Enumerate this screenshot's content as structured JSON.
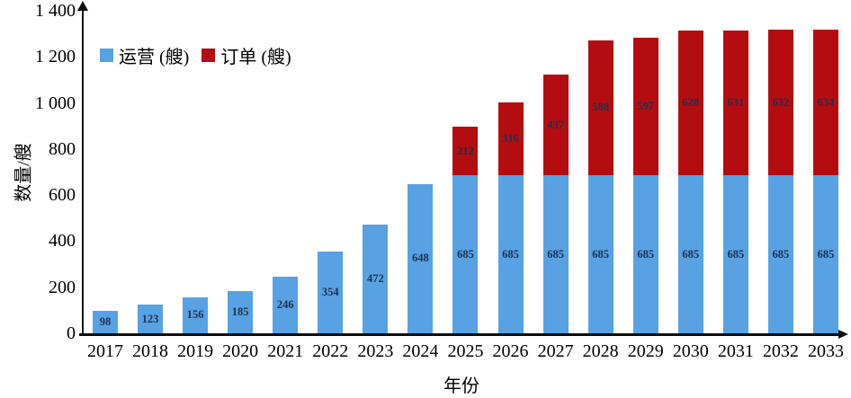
{
  "chart_data": {
    "type": "bar",
    "stacked": true,
    "title": "",
    "xlabel": "年份",
    "ylabel": "数量/艘",
    "categories": [
      "2017",
      "2018",
      "2019",
      "2020",
      "2021",
      "2022",
      "2023",
      "2024",
      "2025",
      "2026",
      "2027",
      "2028",
      "2029",
      "2030",
      "2031",
      "2032",
      "2033"
    ],
    "series": [
      {
        "key": "operating",
        "name": "运营 (艘)",
        "color": "#58a1e2",
        "values": [
          98,
          123,
          156,
          185,
          246,
          354,
          472,
          648,
          685,
          685,
          685,
          685,
          685,
          685,
          685,
          685,
          685
        ]
      },
      {
        "key": "orders",
        "name": "订单 (艘)",
        "color": "#b30d11",
        "values": [
          0,
          0,
          0,
          0,
          0,
          0,
          0,
          0,
          212,
          316,
          437,
          588,
          597,
          628,
          631,
          632,
          634
        ]
      }
    ],
    "ylim": [
      0,
      1400
    ],
    "ytick_step": 200,
    "ytick_labels": [
      "0",
      "200",
      "400",
      "600",
      "800",
      "1 000",
      "1 200",
      "1 400"
    ],
    "legend_position": "top-left",
    "grid": false,
    "bar_label_color": "#1f3050",
    "axis_color": "#0d0d0d"
  }
}
